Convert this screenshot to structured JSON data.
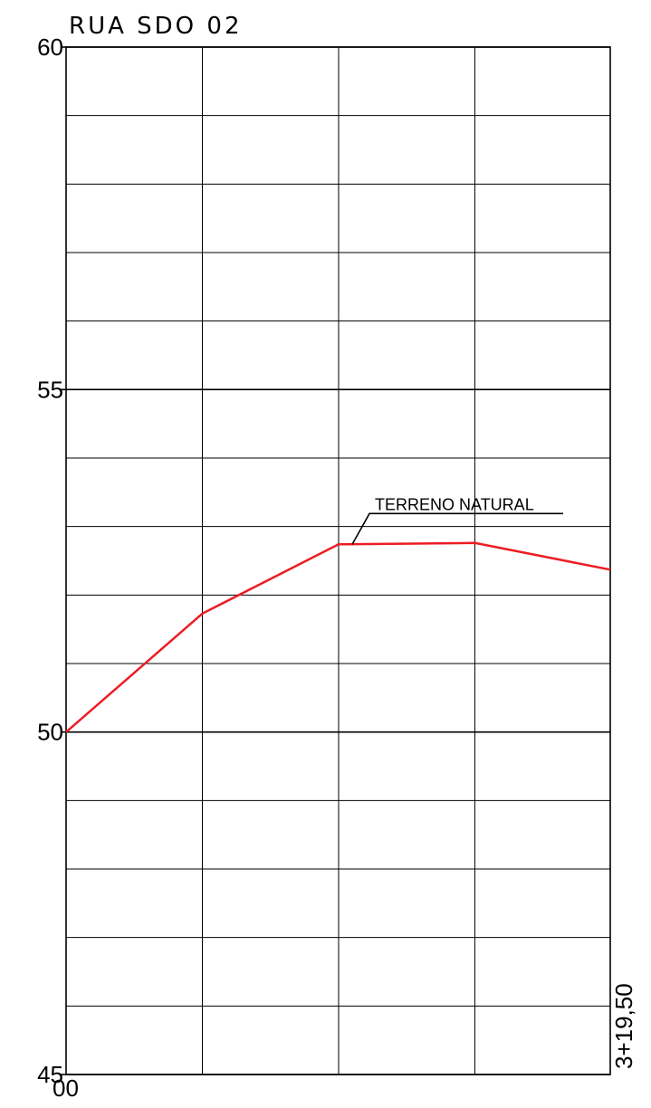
{
  "chart_data": {
    "type": "line",
    "title": "RUA SDO 02",
    "x_ticks": [
      {
        "value": 0,
        "label": "00"
      },
      {
        "value": 319.5,
        "label": "3+19,50"
      }
    ],
    "xlim": [
      0,
      319.5
    ],
    "vertical_grid_x": [
      0,
      80,
      160,
      240,
      319.5
    ],
    "ylim": [
      45,
      60
    ],
    "y_ticks": [
      45,
      50,
      55,
      60
    ],
    "y_grid_step": 1,
    "grid": true,
    "series": [
      {
        "name": "TERRENO NATURAL",
        "color": "#ed1c24",
        "x": [
          0,
          80,
          160,
          240,
          319.5
        ],
        "y": [
          50.0,
          51.73,
          52.74,
          52.76,
          52.37
        ]
      }
    ],
    "annotations": [
      {
        "text": "TERRENO NATURAL",
        "x": 168,
        "y": 52.74
      }
    ]
  }
}
